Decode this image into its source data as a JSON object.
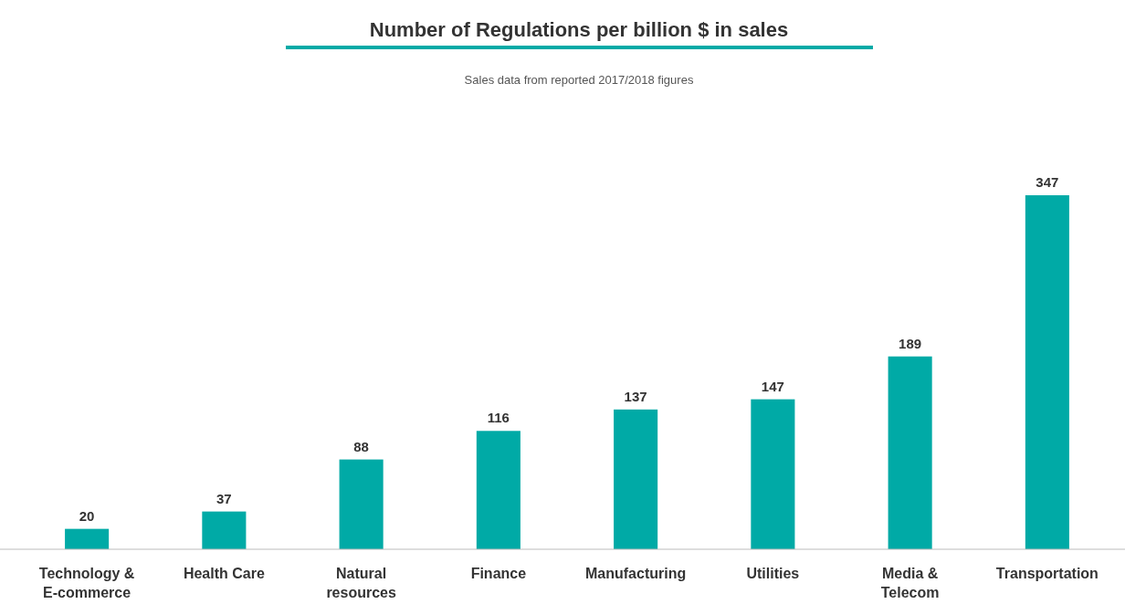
{
  "chart_data": {
    "type": "bar",
    "title": "Number of Regulations per billion $ in sales",
    "annotations": [
      "Sales data from reported 2017/2018  figures"
    ],
    "categories": [
      "Technology & E-commerce",
      "Health Care",
      "Natural resources",
      "Finance",
      "Manufacturing",
      "Utilities",
      "Media & Telecom",
      "Transportation"
    ],
    "values": [
      20,
      37,
      88,
      116,
      137,
      147,
      189,
      347
    ],
    "color": "#00aaa6",
    "data_labels": true
  }
}
